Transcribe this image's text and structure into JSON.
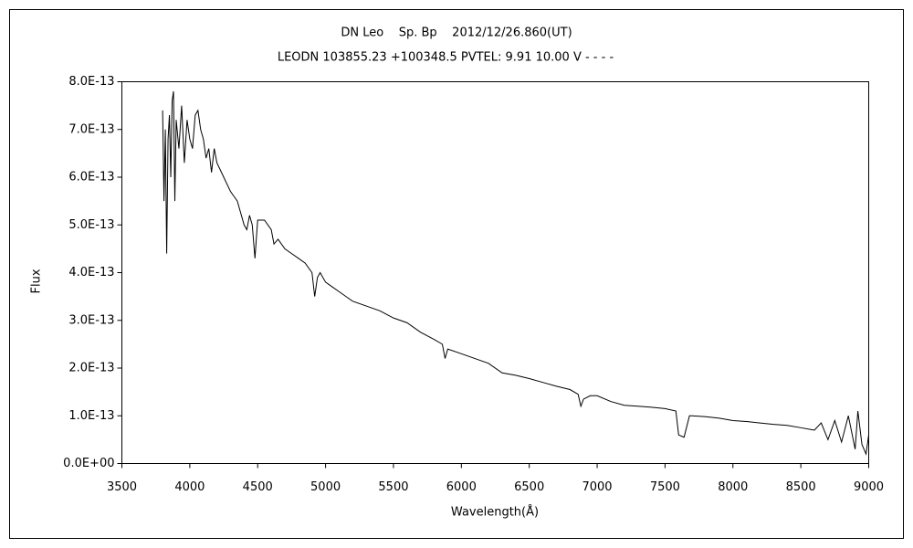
{
  "chart_data": {
    "type": "line",
    "title": "DN Leo    Sp. Bp    2012/12/26.860(UT)",
    "subtitle": "LEODN 103855.23 +100348.5 PVTEL: 9.91 10.00 V - - - -",
    "x_label": "Wavelength(Å)",
    "y_label": "Flux",
    "color": "#000000",
    "xlim": [
      3500,
      9000
    ],
    "xticks": [
      3500,
      4000,
      4500,
      5000,
      5500,
      6000,
      6500,
      7000,
      7500,
      8000,
      8500,
      9000
    ],
    "ylim": [
      0,
      8e-13
    ],
    "yticks": [
      {
        "value": 0,
        "label": "0.0E+00"
      },
      {
        "value": 1e-13,
        "label": "1.0E-13"
      },
      {
        "value": 2e-13,
        "label": "2.0E-13"
      },
      {
        "value": 3e-13,
        "label": "3.0E-13"
      },
      {
        "value": 4e-13,
        "label": "4.0E-13"
      },
      {
        "value": 5e-13,
        "label": "5.0E-13"
      },
      {
        "value": 6e-13,
        "label": "6.0E-13"
      },
      {
        "value": 7e-13,
        "label": "7.0E-13"
      },
      {
        "value": 8e-13,
        "label": "8.0E-13"
      }
    ],
    "x": [
      3800,
      3810,
      3820,
      3830,
      3840,
      3850,
      3860,
      3870,
      3880,
      3890,
      3900,
      3920,
      3940,
      3960,
      3980,
      4000,
      4020,
      4040,
      4060,
      4080,
      4100,
      4120,
      4140,
      4160,
      4180,
      4200,
      4250,
      4300,
      4350,
      4380,
      4400,
      4420,
      4440,
      4460,
      4480,
      4500,
      4550,
      4600,
      4620,
      4650,
      4700,
      4750,
      4800,
      4850,
      4900,
      4920,
      4940,
      4960,
      5000,
      5050,
      5100,
      5200,
      5300,
      5400,
      5500,
      5600,
      5700,
      5800,
      5860,
      5880,
      5900,
      6000,
      6100,
      6200,
      6300,
      6400,
      6500,
      6600,
      6700,
      6800,
      6860,
      6880,
      6900,
      6950,
      7000,
      7100,
      7200,
      7300,
      7400,
      7500,
      7580,
      7600,
      7640,
      7680,
      7700,
      7800,
      7900,
      8000,
      8100,
      8200,
      8300,
      8400,
      8500,
      8600,
      8650,
      8700,
      8750,
      8800,
      8850,
      8900,
      8920,
      8950,
      8980,
      9000
    ],
    "values": [
      7.4e-13,
      5.5e-13,
      7e-13,
      4.4e-13,
      6.8e-13,
      7.3e-13,
      6e-13,
      7.6e-13,
      7.8e-13,
      5.5e-13,
      7.2e-13,
      6.6e-13,
      7.5e-13,
      6.3e-13,
      7.2e-13,
      6.8e-13,
      6.6e-13,
      7.3e-13,
      7.4e-13,
      7e-13,
      6.8e-13,
      6.4e-13,
      6.6e-13,
      6.1e-13,
      6.6e-13,
      6.3e-13,
      6e-13,
      5.7e-13,
      5.5e-13,
      5.2e-13,
      5e-13,
      4.9e-13,
      5.2e-13,
      5e-13,
      4.3e-13,
      5.1e-13,
      5.1e-13,
      4.9e-13,
      4.6e-13,
      4.7e-13,
      4.5e-13,
      4.4e-13,
      4.3e-13,
      4.2e-13,
      4e-13,
      3.5e-13,
      3.9e-13,
      4e-13,
      3.8e-13,
      3.7e-13,
      3.6e-13,
      3.4e-13,
      3.3e-13,
      3.2e-13,
      3.05e-13,
      2.95e-13,
      2.75e-13,
      2.6e-13,
      2.5e-13,
      2.2e-13,
      2.4e-13,
      2.3e-13,
      2.2e-13,
      2.1e-13,
      1.9e-13,
      1.85e-13,
      1.78e-13,
      1.7e-13,
      1.62e-13,
      1.55e-13,
      1.45e-13,
      1.2e-13,
      1.35e-13,
      1.42e-13,
      1.42e-13,
      1.3e-13,
      1.22e-13,
      1.2e-13,
      1.18e-13,
      1.15e-13,
      1.1e-13,
      6e-14,
      5.5e-14,
      1e-13,
      1e-13,
      9.8e-14,
      9.5e-14,
      9e-14,
      8.8e-14,
      8.5e-14,
      8.2e-14,
      8e-14,
      7.5e-14,
      7e-14,
      8.5e-14,
      5e-14,
      9e-14,
      4.5e-14,
      1e-13,
      3e-14,
      1.1e-13,
      4e-14,
      2e-14,
      6e-14
    ]
  }
}
